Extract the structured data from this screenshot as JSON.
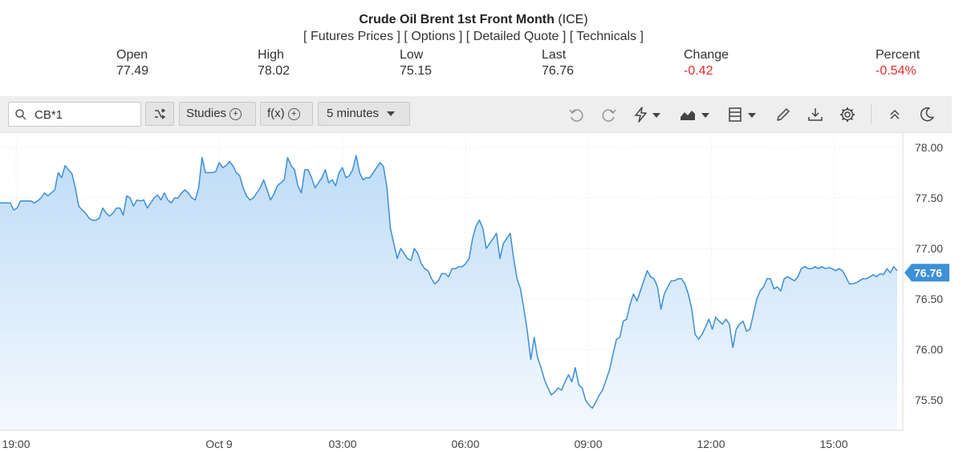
{
  "header": {
    "title_bold": "Crude Oil Brent 1st Front Month",
    "title_suffix": "(ICE)",
    "links": [
      "Futures Prices",
      "Options",
      "Detailed Quote",
      "Technicals"
    ],
    "stats": [
      {
        "label": "Open",
        "value": "77.49",
        "negative": false
      },
      {
        "label": "High",
        "value": "78.02",
        "negative": false
      },
      {
        "label": "Low",
        "value": "75.15",
        "negative": false
      },
      {
        "label": "Last",
        "value": "76.76",
        "negative": false
      },
      {
        "label": "Change",
        "value": "-0.42",
        "negative": true
      },
      {
        "label": "Percent",
        "value": "-0.54%",
        "negative": true
      }
    ]
  },
  "toolbar": {
    "search_value": "CB*1",
    "studies_label": "Studies",
    "fx_label": "f(x)",
    "interval_label": "5 minutes",
    "icons": [
      "search-icon",
      "shuffle-icon",
      "undo-icon",
      "redo-icon",
      "lightning-icon",
      "area-chart-icon",
      "layout-icon",
      "pencil-icon",
      "download-icon",
      "gear-icon",
      "collapse-icon",
      "moon-icon"
    ]
  },
  "colors": {
    "line": "#3d8fd6",
    "fill_top": "#bfdcf7",
    "fill_bottom": "#f4f9fe",
    "last_tag": "#3d8fd6",
    "negative": "#e32b2b"
  },
  "chart_data": {
    "type": "area",
    "ylim": [
      75.2,
      78.15
    ],
    "y_ticks": [
      "78.00",
      "77.50",
      "77.00",
      "76.50",
      "76.00",
      "75.50"
    ],
    "y_tick_values": [
      78.0,
      77.5,
      77.0,
      76.5,
      76.0,
      75.5
    ],
    "x_ticks": [
      "19:00",
      "Oct 9",
      "03:00",
      "06:00",
      "09:00",
      "12:00",
      "15:00"
    ],
    "last_value": "76.76",
    "grid": true,
    "series": [
      {
        "values": [
          77.45,
          77.45,
          77.45,
          77.45,
          77.38,
          77.4,
          77.47,
          77.47,
          77.47,
          77.47,
          77.45,
          77.47,
          77.5,
          77.55,
          77.52,
          77.55,
          77.58,
          77.75,
          77.7,
          77.82,
          77.78,
          77.74,
          77.6,
          77.42,
          77.38,
          77.35,
          77.3,
          77.28,
          77.28,
          77.3,
          77.4,
          77.35,
          77.32,
          77.35,
          77.4,
          77.4,
          77.33,
          77.52,
          77.5,
          77.42,
          77.48,
          77.47,
          77.48,
          77.4,
          77.45,
          77.5,
          77.53,
          77.48,
          77.55,
          77.48,
          77.45,
          77.5,
          77.5,
          77.55,
          77.58,
          77.55,
          77.5,
          77.48,
          77.6,
          77.9,
          77.75,
          77.75,
          77.75,
          77.76,
          77.85,
          77.8,
          77.82,
          77.86,
          77.82,
          77.75,
          77.72,
          77.6,
          77.52,
          77.48,
          77.5,
          77.55,
          77.6,
          77.68,
          77.58,
          77.48,
          77.54,
          77.62,
          77.65,
          77.68,
          77.9,
          77.82,
          77.78,
          77.62,
          77.55,
          77.78,
          77.78,
          77.7,
          77.6,
          77.65,
          77.7,
          77.78,
          77.65,
          77.68,
          77.62,
          77.75,
          77.8,
          77.7,
          77.72,
          77.78,
          77.92,
          77.75,
          77.68,
          77.7,
          77.7,
          77.75,
          77.8,
          77.85,
          77.81,
          77.6,
          77.2,
          77.05,
          76.9,
          77.0,
          76.95,
          76.9,
          76.88,
          77.0,
          76.95,
          76.85,
          76.8,
          76.78,
          76.7,
          76.65,
          76.68,
          76.75,
          76.75,
          76.72,
          76.8,
          76.8,
          76.82,
          76.82,
          76.85,
          76.9,
          77.1,
          77.22,
          77.28,
          77.2,
          77.0,
          77.05,
          77.1,
          77.15,
          76.9,
          77.05,
          77.1,
          77.15,
          76.9,
          76.7,
          76.6,
          76.4,
          76.18,
          75.9,
          76.12,
          75.92,
          75.82,
          75.7,
          75.62,
          75.55,
          75.58,
          75.62,
          75.6,
          75.68,
          75.75,
          75.68,
          75.82,
          75.65,
          75.62,
          75.5,
          75.45,
          75.42,
          75.48,
          75.55,
          75.6,
          75.7,
          75.8,
          75.95,
          76.1,
          76.12,
          76.28,
          76.3,
          76.45,
          76.55,
          76.48,
          76.58,
          76.68,
          76.78,
          76.72,
          76.7,
          76.62,
          76.4,
          76.55,
          76.62,
          76.68,
          76.68,
          76.7,
          76.7,
          76.65,
          76.55,
          76.4,
          76.15,
          76.1,
          76.15,
          76.22,
          76.3,
          76.2,
          76.32,
          76.28,
          76.25,
          76.3,
          76.25,
          76.02,
          76.2,
          76.25,
          76.28,
          76.18,
          76.2,
          76.35,
          76.5,
          76.58,
          76.62,
          76.7,
          76.7,
          76.6,
          76.62,
          76.58,
          76.7,
          76.72,
          76.7,
          76.68,
          76.72,
          76.8,
          76.82,
          76.8,
          76.8,
          76.82,
          76.8,
          76.82,
          76.8,
          76.81,
          76.8,
          76.78,
          76.8,
          76.78,
          76.72,
          76.65,
          76.65,
          76.66,
          76.68,
          76.7,
          76.7,
          76.72,
          76.74,
          76.72,
          76.75,
          76.74,
          76.8,
          76.76,
          76.82,
          76.78
        ]
      }
    ]
  }
}
